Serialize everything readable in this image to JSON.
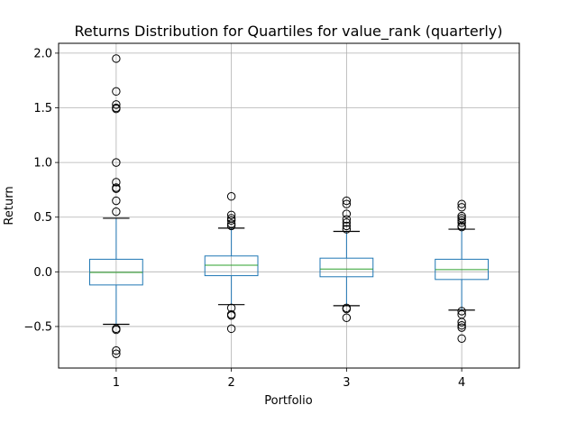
{
  "chart_data": {
    "type": "box",
    "title": "Returns Distribution for Quartiles for value_rank (quarterly)",
    "xlabel": "Portfolio",
    "ylabel": "Return",
    "ylim": [
      -0.88,
      2.09
    ],
    "yticks": [
      -0.5,
      0.0,
      0.5,
      1.0,
      1.5,
      2.0
    ],
    "ytick_labels": [
      "−0.5",
      "0.0",
      "0.5",
      "1.0",
      "1.5",
      "2.0"
    ],
    "grid": true,
    "categories": [
      "1",
      "2",
      "3",
      "4"
    ],
    "colors": {
      "box": "#1f77b4",
      "median": "#2ca02c",
      "grid": "#b0b0b0",
      "outlier": "#000000"
    },
    "boxes": [
      {
        "name": "1",
        "whisker_low": -0.48,
        "q1": -0.12,
        "median": -0.005,
        "q3": 0.115,
        "whisker_high": 0.49,
        "outliers": [
          1.95,
          1.65,
          1.53,
          1.5,
          1.49,
          1.0,
          0.82,
          0.77,
          0.76,
          0.65,
          0.55,
          -0.52,
          -0.53,
          -0.72,
          -0.75
        ]
      },
      {
        "name": "2",
        "whisker_low": -0.3,
        "q1": -0.035,
        "median": 0.06,
        "q3": 0.145,
        "whisker_high": 0.4,
        "outliers": [
          0.69,
          0.52,
          0.49,
          0.47,
          0.44,
          0.42,
          -0.33,
          -0.39,
          -0.4,
          -0.52
        ]
      },
      {
        "name": "3",
        "whisker_low": -0.31,
        "q1": -0.045,
        "median": 0.025,
        "q3": 0.125,
        "whisker_high": 0.37,
        "outliers": [
          0.65,
          0.62,
          0.53,
          0.48,
          0.45,
          0.42,
          0.39,
          -0.33,
          -0.34,
          -0.42
        ]
      },
      {
        "name": "4",
        "whisker_low": -0.35,
        "q1": -0.07,
        "median": 0.02,
        "q3": 0.115,
        "whisker_high": 0.39,
        "outliers": [
          0.62,
          0.59,
          0.51,
          0.49,
          0.47,
          0.45,
          0.42,
          0.41,
          -0.36,
          -0.39,
          -0.46,
          -0.49,
          -0.51,
          -0.61
        ]
      }
    ]
  }
}
